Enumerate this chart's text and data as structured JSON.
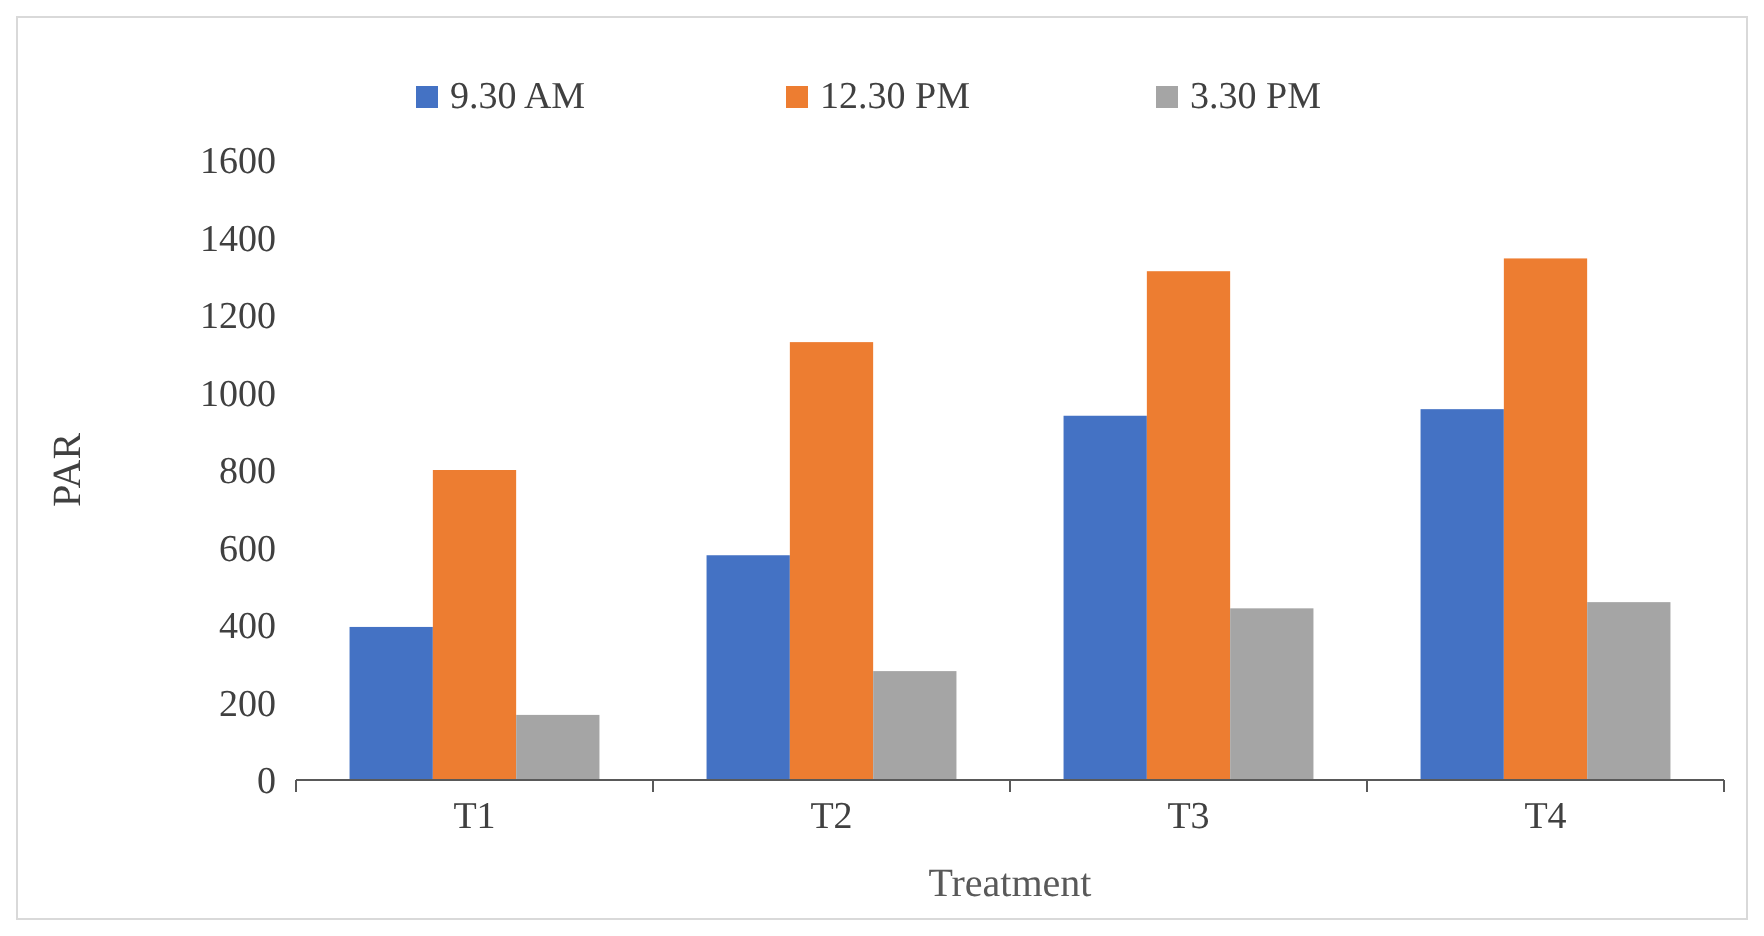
{
  "chart_data": {
    "type": "bar",
    "xlabel": "Treatment",
    "ylabel": "PAR",
    "categories": [
      "T1",
      "T2",
      "T3",
      "T4"
    ],
    "series": [
      {
        "name": "9.30 AM",
        "color": "#4472c4",
        "values": [
          395,
          580,
          940,
          957
        ]
      },
      {
        "name": "12.30 PM",
        "color": "#ed7d31",
        "values": [
          800,
          1130,
          1313,
          1346
        ]
      },
      {
        "name": "3.30 PM",
        "color": "#a5a5a5",
        "values": [
          168,
          281,
          443,
          459
        ]
      }
    ],
    "ylim": [
      0,
      1600
    ],
    "yticks": [
      0,
      200,
      400,
      600,
      800,
      1000,
      1200,
      1400,
      1600
    ],
    "grid": false,
    "legend": "top"
  }
}
